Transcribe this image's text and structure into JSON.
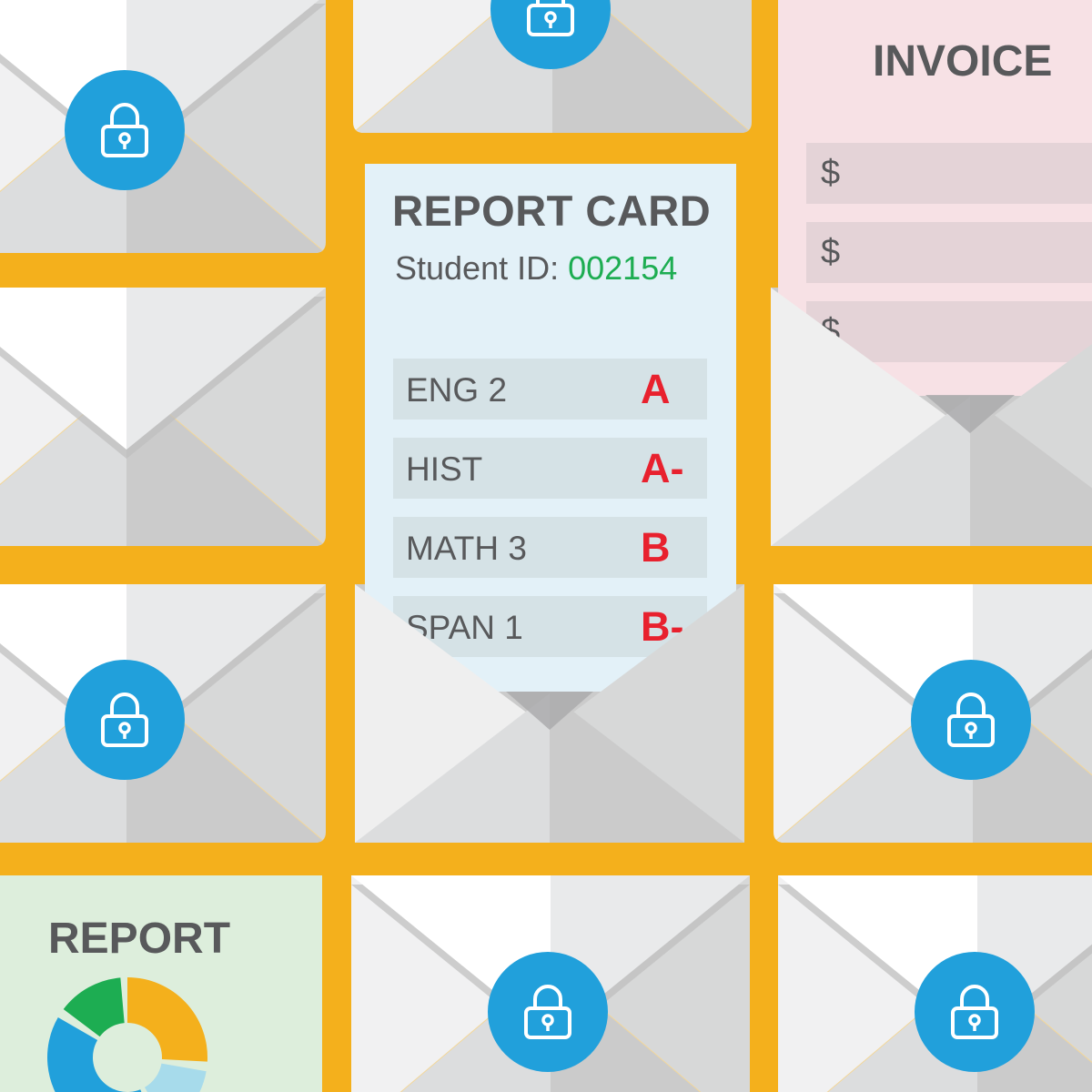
{
  "colors": {
    "background": "#F4B01C",
    "lock": "#21A0DB",
    "grade": "#E8212E",
    "student_id": "#1DAD52",
    "text": "#58595B"
  },
  "icons": {
    "lock": "padlock-icon",
    "envelope": "envelope-icon"
  },
  "report_card": {
    "title": "REPORT CARD",
    "student_id_label": "Student ID: ",
    "student_id": "002154",
    "grades": [
      {
        "subject": "ENG 2",
        "grade": "A"
      },
      {
        "subject": "HIST",
        "grade": "A-"
      },
      {
        "subject": "MATH 3",
        "grade": "B"
      },
      {
        "subject": "SPAN 1",
        "grade": "B-"
      }
    ]
  },
  "invoice": {
    "title": "INVOICE",
    "rows": [
      "$",
      "$",
      "$"
    ]
  },
  "report": {
    "title": "REPORT",
    "donut_colors": [
      "#F4B01C",
      "#A7DBEB",
      "#21A0DB",
      "#1DAD52"
    ]
  }
}
